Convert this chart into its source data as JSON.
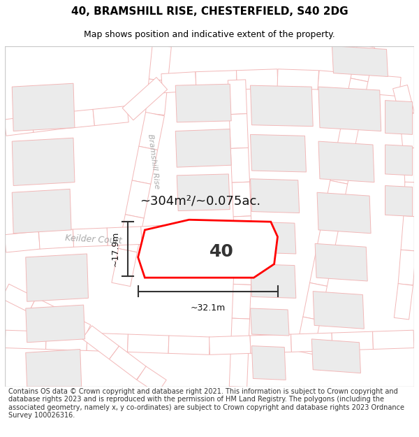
{
  "title": "40, BRAMSHILL RISE, CHESTERFIELD, S40 2DG",
  "subtitle": "Map shows position and indicative extent of the property.",
  "footer": "Contains OS data © Crown copyright and database right 2021. This information is subject to Crown copyright and database rights 2023 and is reproduced with the permission of HM Land Registry. The polygons (including the associated geometry, namely x, y co-ordinates) are subject to Crown copyright and database rights 2023 Ordnance Survey 100026316.",
  "bg_color": "#ffffff",
  "map_bg": "#ffffff",
  "road_fill": "#ffffff",
  "road_outline": "#f2b8b8",
  "building_fill": "#ebebeb",
  "building_outline": "#f2b8b8",
  "plot_fill": "#ffffff",
  "plot_outline": "#ff0000",
  "dim_color": "#333333",
  "label_color": "#555555",
  "plot_label": "40",
  "area_label": "~304m²/~0.075ac.",
  "width_label": "~32.1m",
  "height_label": "~17.9m",
  "street_bramshill": "Bramshill Rise",
  "street_keilder": "Keilder Court",
  "title_fontsize": 11,
  "subtitle_fontsize": 9,
  "footer_fontsize": 7
}
